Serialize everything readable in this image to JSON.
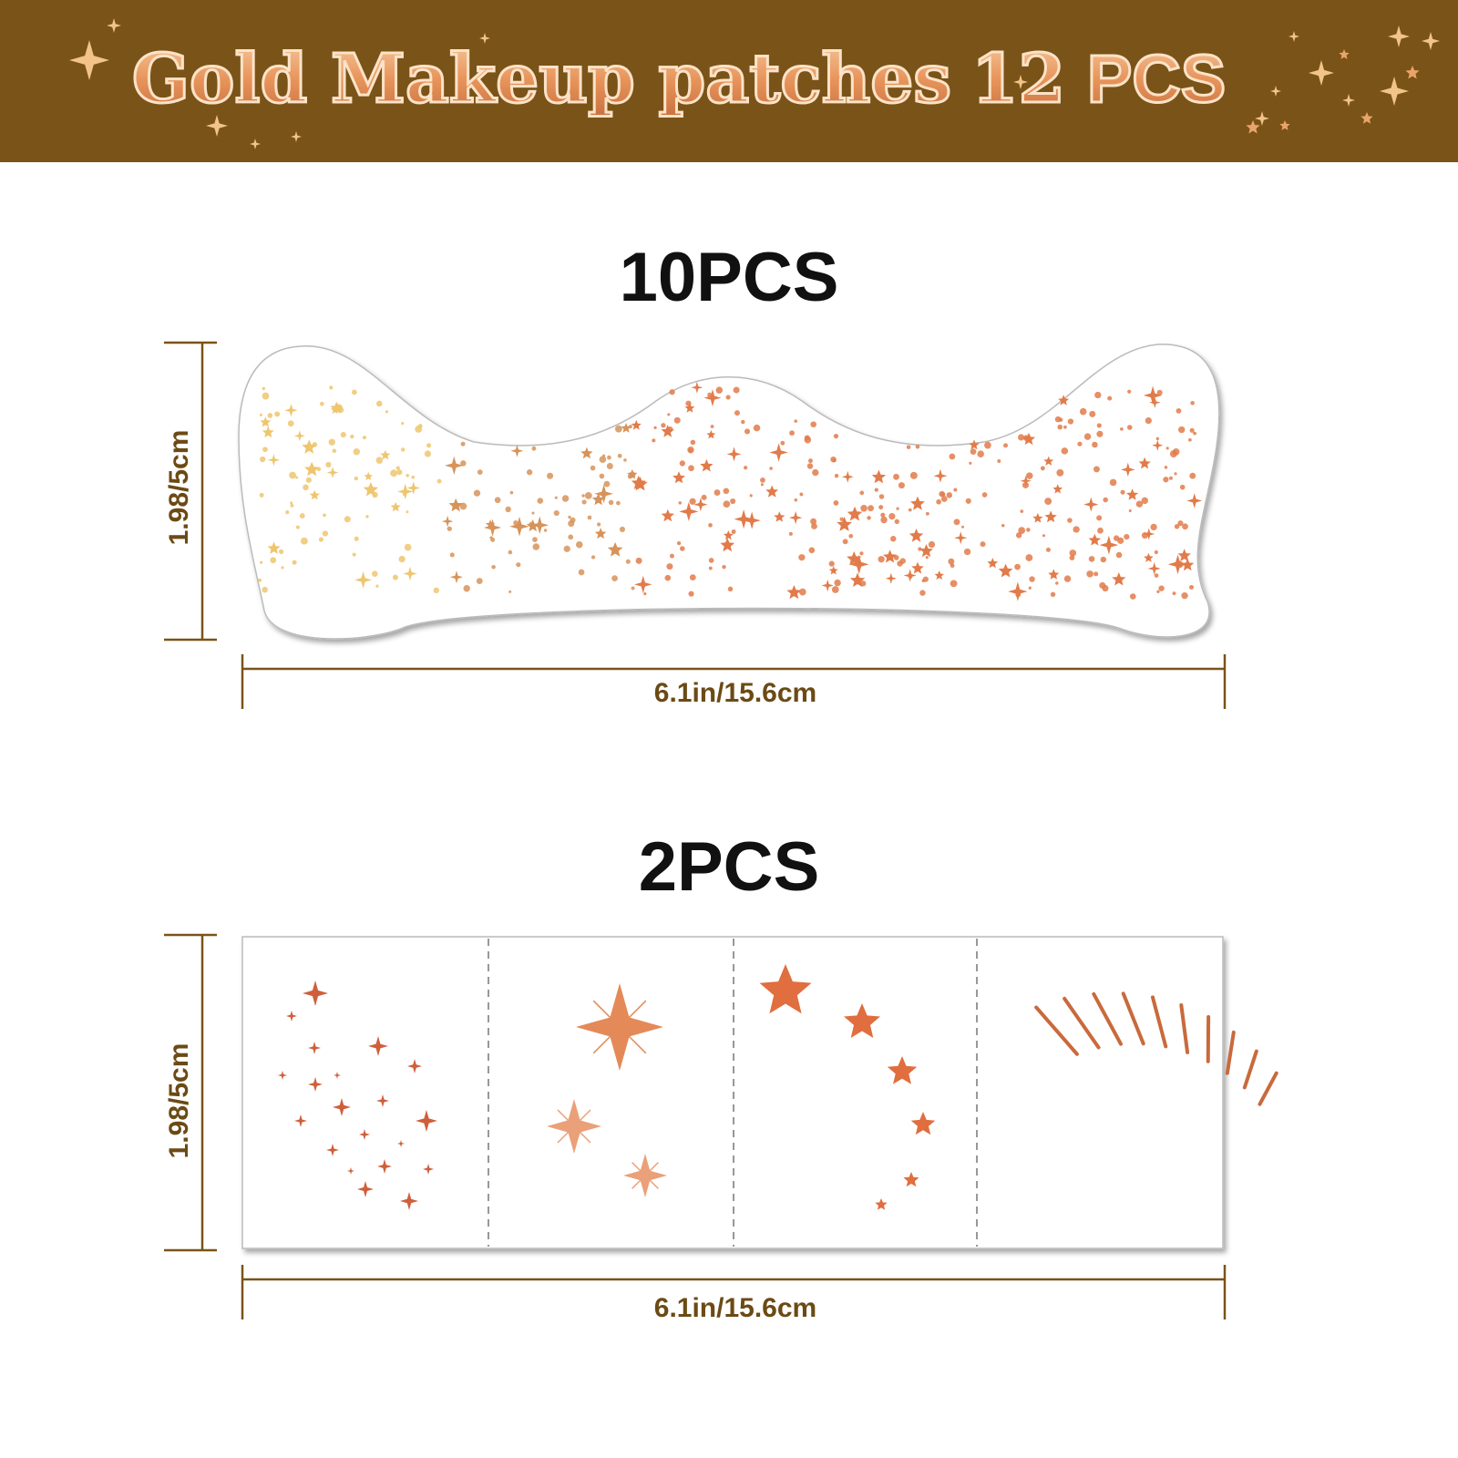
{
  "header": {
    "title": "Gold Makeup patches",
    "count": "12",
    "unit": "PCS"
  },
  "sections": [
    {
      "label": "10PCS",
      "height": "1.98/5cm",
      "width": "6.1in/15.6cm"
    },
    {
      "label": "2PCS",
      "height": "1.98/5cm",
      "width": "6.1in/15.6cm"
    }
  ]
}
